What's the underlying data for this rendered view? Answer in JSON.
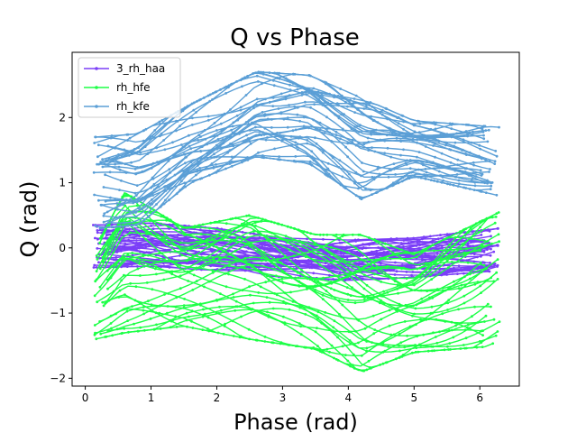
{
  "chart_data": {
    "type": "line",
    "title": "Q vs Phase",
    "xlabel": "Phase (rad)",
    "ylabel": "Q (rad)",
    "xlim": [
      -0.2,
      6.6
    ],
    "ylim": [
      -2.12,
      3.0
    ],
    "xticks": [
      0,
      1,
      2,
      3,
      4,
      5,
      6
    ],
    "yticks": [
      -2,
      -1,
      0,
      1,
      2
    ],
    "legend_position": "upper-left",
    "series": [
      {
        "name": "3_rh_haa",
        "color": "#7b3ff7",
        "envelope": [
          {
            "x": 0.15,
            "y": [
              -0.3,
              0.35
            ]
          },
          {
            "x": 1.0,
            "y": [
              -0.28,
              0.38
            ]
          },
          {
            "x": 2.0,
            "y": [
              -0.35,
              0.3
            ]
          },
          {
            "x": 3.0,
            "y": [
              -0.45,
              0.15
            ]
          },
          {
            "x": 4.0,
            "y": [
              -0.5,
              0.12
            ]
          },
          {
            "x": 5.0,
            "y": [
              -0.45,
              0.15
            ]
          },
          {
            "x": 6.3,
            "y": [
              -0.35,
              0.3
            ]
          }
        ]
      },
      {
        "name": "rh_hfe",
        "color": "#1dff47",
        "envelope": [
          {
            "x": 0.15,
            "y": [
              -1.4,
              0.0
            ]
          },
          {
            "x": 0.6,
            "y": [
              -1.3,
              0.85
            ]
          },
          {
            "x": 1.5,
            "y": [
              -1.2,
              0.3
            ]
          },
          {
            "x": 2.5,
            "y": [
              -1.4,
              0.5
            ]
          },
          {
            "x": 3.5,
            "y": [
              -1.55,
              0.2
            ]
          },
          {
            "x": 4.2,
            "y": [
              -1.9,
              0.2
            ]
          },
          {
            "x": 5.0,
            "y": [
              -1.6,
              -0.1
            ]
          },
          {
            "x": 6.3,
            "y": [
              -1.5,
              0.55
            ]
          }
        ]
      },
      {
        "name": "rh_kfe",
        "color": "#5b9fd6",
        "envelope": [
          {
            "x": 0.15,
            "y": [
              0.3,
              1.7
            ]
          },
          {
            "x": 0.8,
            "y": [
              0.35,
              1.75
            ]
          },
          {
            "x": 1.6,
            "y": [
              1.0,
              2.2
            ]
          },
          {
            "x": 2.6,
            "y": [
              1.4,
              2.7
            ]
          },
          {
            "x": 3.4,
            "y": [
              1.3,
              2.65
            ]
          },
          {
            "x": 4.2,
            "y": [
              0.75,
              2.3
            ]
          },
          {
            "x": 5.0,
            "y": [
              1.1,
              1.95
            ]
          },
          {
            "x": 6.3,
            "y": [
              0.8,
              1.85
            ]
          }
        ]
      }
    ]
  }
}
